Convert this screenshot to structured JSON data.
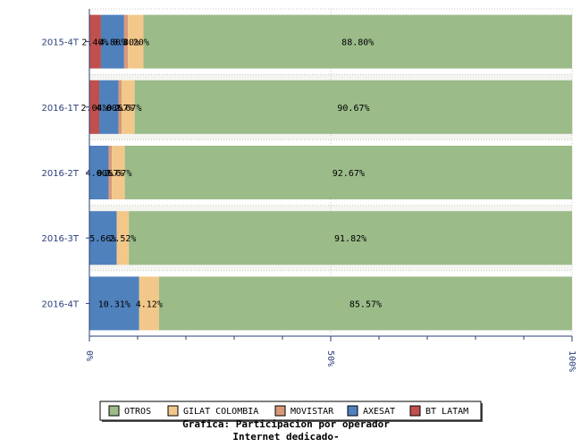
{
  "chart_data": {
    "type": "bar",
    "orientation": "horizontal",
    "stacked": "percent",
    "categories": [
      "2015-4T",
      "2016-1T",
      "2016-2T",
      "2016-3T",
      "2016-4T"
    ],
    "series": [
      {
        "name": "BT LATAM",
        "color": "#c0504d",
        "values": [
          2.4,
          2.04,
          0,
          0,
          0
        ]
      },
      {
        "name": "AXESAT",
        "color": "#4f81bd",
        "values": [
          4.8,
          4.0,
          4.0,
          5.66,
          10.31
        ]
      },
      {
        "name": "MOVISTAR",
        "color": "#d99979",
        "values": [
          0.8,
          0.67,
          0.67,
          0,
          0
        ]
      },
      {
        "name": "GILAT COLOMBIA",
        "color": "#f2c88a",
        "values": [
          3.2,
          2.67,
          2.67,
          2.52,
          4.12
        ]
      },
      {
        "name": "OTROS",
        "color": "#9bbb89",
        "values": [
          88.8,
          90.67,
          92.67,
          91.82,
          85.57
        ]
      }
    ],
    "data_labels": [
      [
        "2.40%",
        "4.80%",
        "0.80%",
        "3.20%",
        "88.80%"
      ],
      [
        "2.04%",
        "4.00%",
        "0.67%",
        "2.67%",
        "90.67%"
      ],
      [
        "",
        "4.00%",
        "0.67%",
        "2.67%",
        "92.67%"
      ],
      [
        "",
        "5.66%",
        "",
        "2.52%",
        "91.82%"
      ],
      [
        "",
        "10.31%",
        "",
        "4.12%",
        "85.57%"
      ]
    ],
    "xlim": [
      0,
      100
    ],
    "xticks": [
      {
        "value": 0,
        "label": "0%"
      },
      {
        "value": 50,
        "label": "50%"
      },
      {
        "value": 100,
        "label": "100%"
      }
    ],
    "legend_order": [
      "OTROS",
      "GILAT COLOMBIA",
      "MOVISTAR",
      "AXESAT",
      "BT LATAM"
    ],
    "legend_position": "bottom",
    "grid": true,
    "title_lines": [
      "Grafica: Participacion por operador",
      "Internet dedicado-"
    ]
  }
}
